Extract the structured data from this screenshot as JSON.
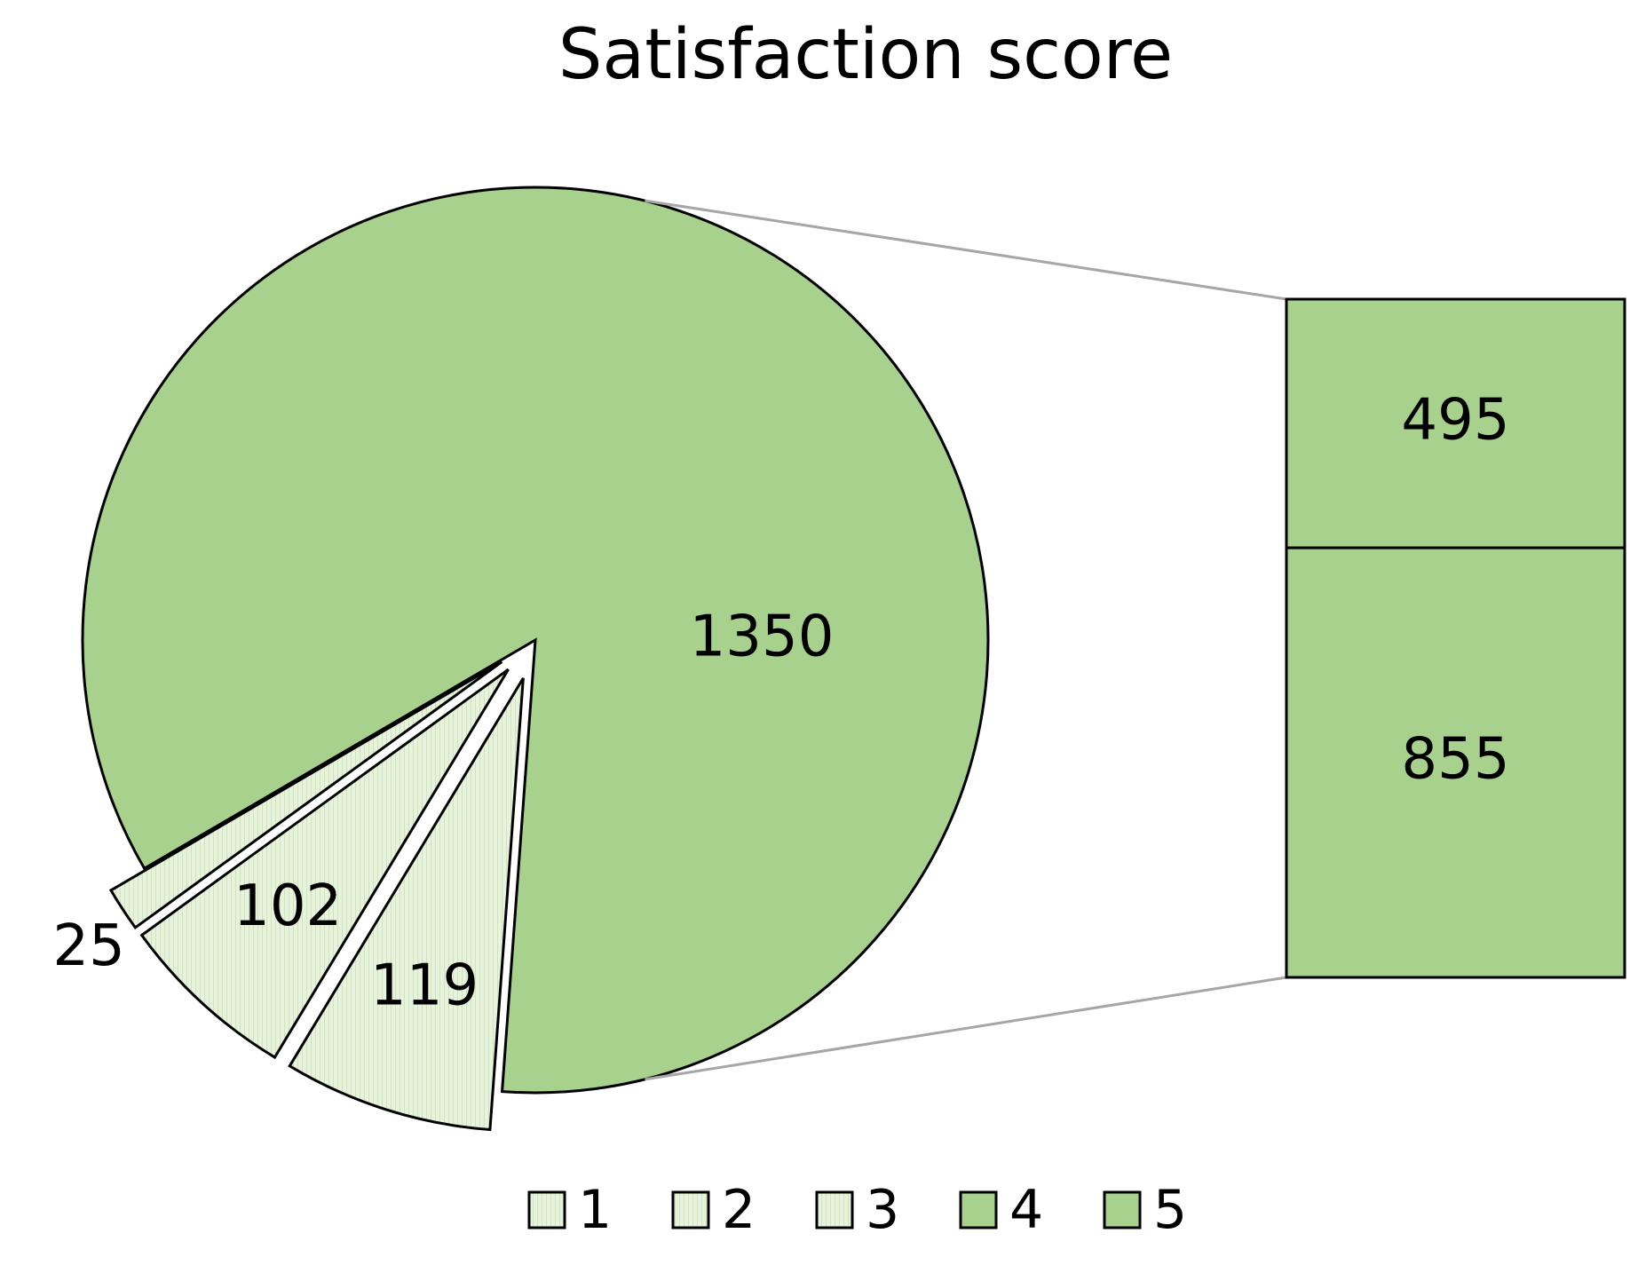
{
  "chart_data": {
    "type": "pie",
    "subtype": "pie-of-pie",
    "title": "Satisfaction score",
    "categories": [
      "1",
      "2",
      "3",
      "4",
      "5"
    ],
    "values": [
      25,
      102,
      119,
      495,
      855
    ],
    "main_pie": [
      {
        "label": "25",
        "categories": [
          "1"
        ],
        "value": 25
      },
      {
        "label": "102",
        "categories": [
          "2"
        ],
        "value": 102
      },
      {
        "label": "119",
        "categories": [
          "3"
        ],
        "value": 119
      },
      {
        "label": "1350",
        "categories": [
          "4",
          "5"
        ],
        "value": 1350
      }
    ],
    "secondary_bar": [
      {
        "category": "4",
        "label": "495",
        "value": 495
      },
      {
        "category": "5",
        "label": "855",
        "value": 855
      }
    ],
    "legend": {
      "position": "bottom",
      "entries": [
        "1",
        "2",
        "3",
        "4",
        "5"
      ]
    },
    "colors": {
      "light_fill": "#e7f3dd",
      "dark_fill": "#a9d18e",
      "stroke": "#000000",
      "connector": "#a6a6a6"
    }
  }
}
